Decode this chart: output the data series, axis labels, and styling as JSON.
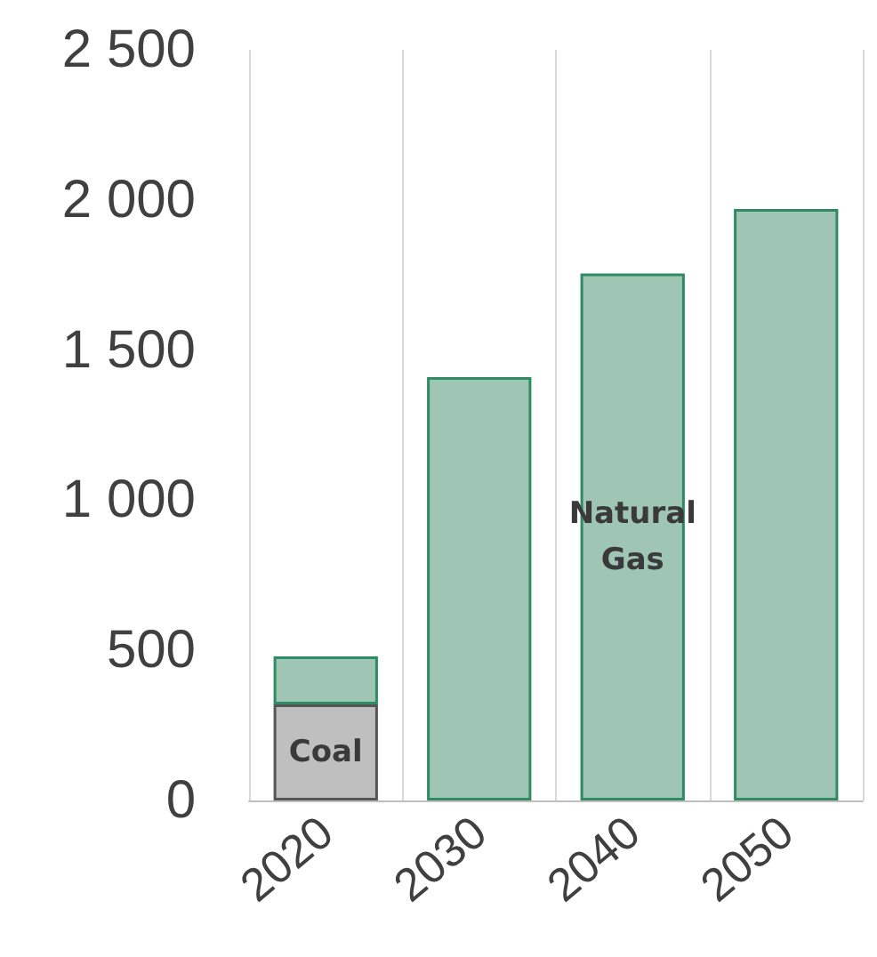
{
  "chart_data": {
    "type": "bar",
    "stacked": true,
    "categories": [
      "2020",
      "2030",
      "2040",
      "2050"
    ],
    "series": [
      {
        "name": "Coal",
        "color": "#bfbfbf",
        "values": [
          320,
          null,
          null,
          null
        ]
      },
      {
        "name": "Natural Gas",
        "color": "#9fc5b4",
        "values": [
          160,
          1410,
          1755,
          1970
        ]
      }
    ],
    "ylim": [
      0,
      2500
    ],
    "yticks": [
      0,
      500,
      {
        "value": 1000,
        "label": "1 000"
      },
      {
        "value": 1500,
        "label": "1 500"
      },
      {
        "value": 2000,
        "label": "2 000"
      },
      {
        "value": 2500,
        "label": "2 500"
      }
    ],
    "grid": "x",
    "legend": false
  }
}
